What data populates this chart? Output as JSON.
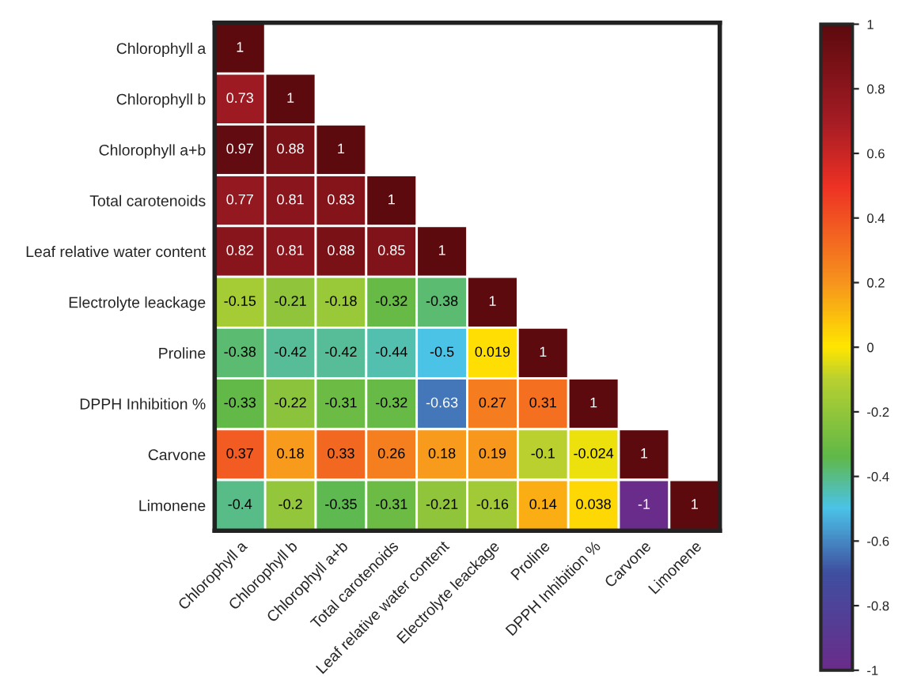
{
  "chart_data": {
    "type": "heatmap",
    "categories": [
      "Chlorophyll a",
      "Chlorophyll b",
      "Chlorophyll a+b",
      "Total carotenoids",
      "Leaf relative water content",
      "Electrolyte leackage",
      "Proline",
      "DPPH Inhibition %",
      "Carvone",
      "Limonene"
    ],
    "y_categories": [
      "Chlorophyll a",
      "Chlorophyll b",
      "Chlorophyll a+b",
      "Total carotenoids",
      "Leaf relative water content",
      "Electrolyte leackage",
      "Proline",
      "DPPH Inhibition %",
      "Carvone",
      "Limonene"
    ],
    "cells": [
      [
        1,
        null,
        null,
        null,
        null,
        null,
        null,
        null,
        null,
        null
      ],
      [
        0.73,
        1,
        null,
        null,
        null,
        null,
        null,
        null,
        null,
        null
      ],
      [
        0.97,
        0.88,
        1,
        null,
        null,
        null,
        null,
        null,
        null,
        null
      ],
      [
        0.77,
        0.81,
        0.83,
        1,
        null,
        null,
        null,
        null,
        null,
        null
      ],
      [
        0.82,
        0.81,
        0.88,
        0.85,
        1,
        null,
        null,
        null,
        null,
        null
      ],
      [
        -0.15,
        -0.21,
        -0.18,
        -0.32,
        -0.38,
        1,
        null,
        null,
        null,
        null
      ],
      [
        -0.38,
        -0.42,
        -0.42,
        -0.44,
        -0.5,
        0.019,
        1,
        null,
        null,
        null
      ],
      [
        -0.33,
        -0.22,
        -0.31,
        -0.32,
        -0.63,
        0.27,
        0.31,
        1,
        null,
        null
      ],
      [
        0.37,
        0.18,
        0.33,
        0.26,
        0.18,
        0.19,
        -0.1,
        -0.024,
        1,
        null
      ],
      [
        -0.4,
        -0.2,
        -0.35,
        -0.31,
        -0.21,
        -0.16,
        0.14,
        0.038,
        -1,
        1
      ]
    ],
    "data_labels": true,
    "clim": [
      -1,
      1
    ],
    "cticks": [
      1,
      0.8,
      0.6,
      0.4,
      0.2,
      0,
      -0.2,
      -0.4,
      -0.6,
      -0.8,
      -1
    ]
  }
}
